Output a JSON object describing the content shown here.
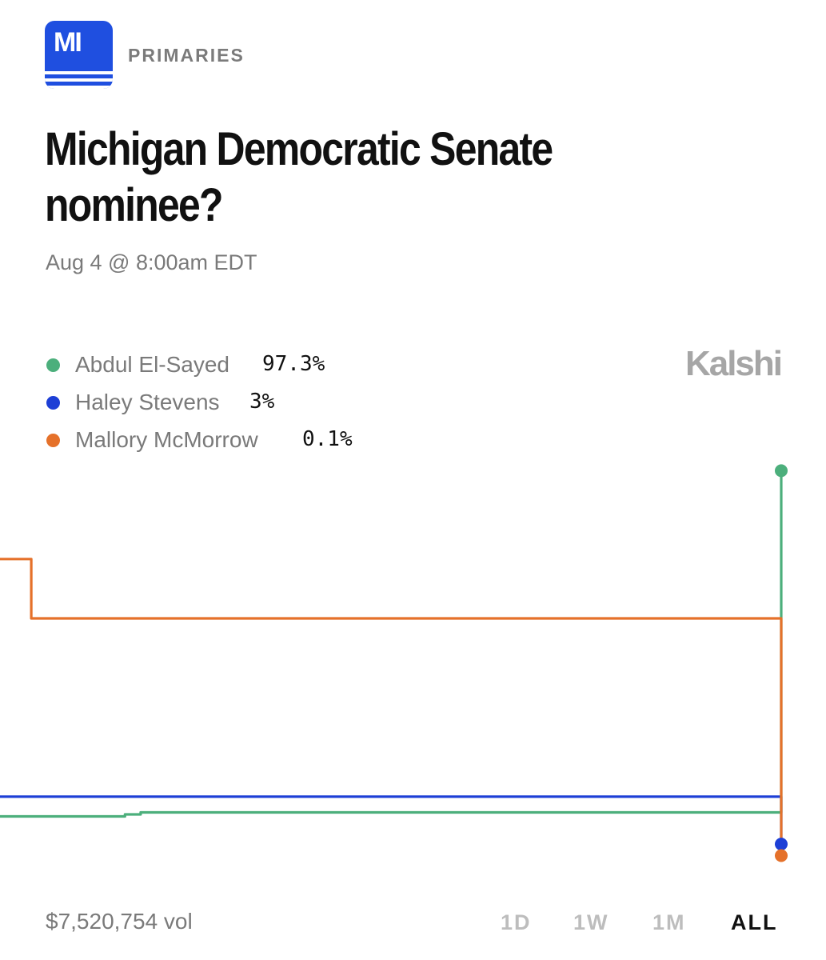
{
  "header": {
    "badge_text": "MI",
    "category": "PRIMARIES",
    "title": "Michigan Democratic Senate nominee?",
    "date": "Aug 4 @ 8:00am EDT",
    "brand": "Kalshi",
    "brand_color": "#a6a6a6",
    "badge_color": "#1f4fe0"
  },
  "legend": [
    {
      "name": "Abdul El-Sayed",
      "value": "97.3%",
      "color": "#4caf7c"
    },
    {
      "name": "Haley Stevens",
      "value": "3%",
      "color": "#1d3fd6"
    },
    {
      "name": "Mallory McMorrow",
      "value": "0.1%",
      "color": "#e5712a"
    }
  ],
  "footer": {
    "volume": "$7,520,754 vol",
    "ranges": [
      "1D",
      "1W",
      "1M",
      "ALL"
    ],
    "active_range": "ALL"
  },
  "chart_data": {
    "type": "line",
    "xlabel": "",
    "ylabel": "",
    "ylim": [
      0,
      100
    ],
    "grid": false,
    "legend_position": "top-left",
    "x": [
      0,
      2,
      4,
      6,
      8,
      10,
      12,
      14,
      16,
      18,
      20,
      22,
      24,
      26,
      28,
      30,
      32,
      34,
      36,
      38,
      40,
      42,
      44,
      46,
      48,
      50,
      52,
      54,
      56,
      58,
      60,
      62,
      64,
      66,
      68,
      70,
      72,
      74,
      76,
      78,
      80,
      82,
      84,
      86,
      88,
      90,
      92,
      94,
      96,
      98,
      100
    ],
    "series": [
      {
        "name": "Abdul El-Sayed",
        "color": "#4caf7c",
        "values": [
          10,
          10,
          10,
          10,
          10,
          10,
          10,
          10,
          10.5,
          11,
          11,
          11,
          11,
          11,
          11,
          11,
          11,
          11,
          11,
          11,
          11,
          11,
          11,
          11,
          11,
          11,
          11,
          11,
          11,
          11,
          11,
          11,
          11,
          11,
          11,
          11,
          11,
          11,
          11,
          11,
          11,
          11,
          11,
          11,
          11,
          11,
          11,
          11,
          11,
          11,
          97.3
        ]
      },
      {
        "name": "Haley Stevens",
        "color": "#1d3fd6",
        "values": [
          15,
          15,
          15,
          15,
          15,
          15,
          15,
          15,
          15,
          15,
          15,
          15,
          15,
          15,
          15,
          15,
          15,
          15,
          15,
          15,
          15,
          15,
          15,
          15,
          15,
          15,
          15,
          15,
          15,
          15,
          15,
          15,
          15,
          15,
          15,
          15,
          15,
          15,
          15,
          15,
          15,
          15,
          15,
          15,
          15,
          15,
          15,
          15,
          15,
          15,
          3
        ]
      },
      {
        "name": "Mallory McMorrow",
        "color": "#e5712a",
        "values": [
          75,
          75,
          60,
          60,
          60,
          60,
          60,
          60,
          60,
          60,
          60,
          60,
          60,
          60,
          60,
          60,
          60,
          60,
          60,
          60,
          60,
          60,
          60,
          60,
          60,
          60,
          60,
          60,
          60,
          60,
          60,
          60,
          60,
          60,
          60,
          60,
          60,
          60,
          60,
          60,
          60,
          60,
          60,
          60,
          60,
          60,
          60,
          60,
          60,
          60,
          0.1
        ]
      }
    ]
  }
}
